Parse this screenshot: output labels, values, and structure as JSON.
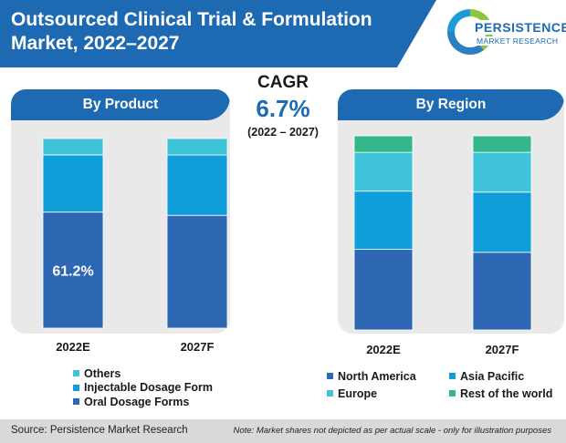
{
  "header": {
    "title": "Outsourced Clinical Trial & Formulation Market, 2022–2027"
  },
  "logo": {
    "name": "PERSISTENCE",
    "subtitle": "MARKET RESEARCH"
  },
  "cagr": {
    "label": "CAGR",
    "value": "6.7%",
    "period": "(2022 – 2027)"
  },
  "colors": {
    "brand_blue": "#1d6ab3",
    "oral": "#2e68b4",
    "injectable": "#109ed8",
    "others": "#3fc3d8",
    "north_america": "#2e68b4",
    "asia_pacific": "#109ed8",
    "europe": "#3fc3d8",
    "rest_of_world": "#34b88a"
  },
  "chart_data": [
    {
      "type": "bar",
      "stacked": true,
      "title": "By Product",
      "categories": [
        "2022E",
        "2027F"
      ],
      "ylim": [
        0,
        100
      ],
      "series": [
        {
          "name": "Oral Dosage Forms",
          "values": [
            61.2,
            59.5
          ]
        },
        {
          "name": "Injectable Dosage Form",
          "values": [
            30.2,
            31.8
          ]
        },
        {
          "name": "Others",
          "values": [
            8.6,
            8.7
          ]
        }
      ],
      "data_labels": [
        {
          "series": "Oral Dosage Forms",
          "category": "2022E",
          "text": "61.2%"
        }
      ],
      "legend": "bottom"
    },
    {
      "type": "bar",
      "stacked": true,
      "title": "By Region",
      "categories": [
        "2022E",
        "2027F"
      ],
      "ylim": [
        0,
        100
      ],
      "series": [
        {
          "name": "North America",
          "values": [
            41.5,
            40.0
          ]
        },
        {
          "name": "Asia Pacific",
          "values": [
            30.0,
            31.0
          ]
        },
        {
          "name": "Europe",
          "values": [
            20.0,
            20.5
          ]
        },
        {
          "name": "Rest of the world",
          "values": [
            8.5,
            8.5
          ]
        }
      ],
      "legend": "bottom"
    }
  ],
  "legend_product": [
    "Others",
    "Injectable Dosage Form",
    "Oral Dosage Forms"
  ],
  "legend_region": [
    "North America",
    "Asia Pacific",
    "Europe",
    "Rest of the world"
  ],
  "footer": {
    "source": "Source: Persistence Market Research",
    "note": "Note: Market shares not depicted as per actual scale - only for illustration purposes"
  }
}
